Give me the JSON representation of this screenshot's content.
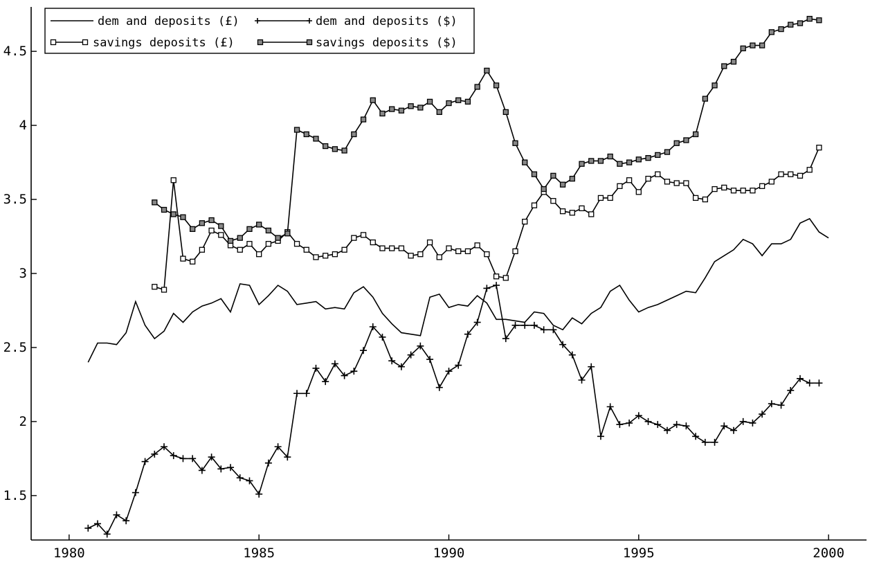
{
  "chart_data": {
    "type": "line",
    "title": "",
    "xlabel": "",
    "ylabel": "",
    "xlim": [
      1979,
      2001
    ],
    "ylim": [
      1.2,
      4.8
    ],
    "grid": false,
    "legend_position": "top-left",
    "x_ticks": [
      1980,
      1985,
      1990,
      1995,
      2000
    ],
    "y_ticks": [
      1.5,
      2,
      2.5,
      3,
      3.5,
      4,
      4.5
    ],
    "x_tick_labels": [
      "1980",
      "1985",
      "1990",
      "1995",
      "2000"
    ],
    "y_tick_labels": [
      "1.5",
      "2",
      "2.5",
      "3",
      "3.5",
      "4",
      "4.5"
    ],
    "series": [
      {
        "name": "dem and deposits (£)",
        "marker": "none",
        "x_start": 1980.5,
        "x_step": 0.25,
        "values": [
          2.4,
          2.53,
          2.53,
          2.52,
          2.6,
          2.81,
          2.65,
          2.56,
          2.61,
          2.73,
          2.67,
          2.74,
          2.78,
          2.8,
          2.83,
          2.74,
          2.93,
          2.92,
          2.79,
          2.85,
          2.92,
          2.88,
          2.79,
          2.8,
          2.81,
          2.76,
          2.77,
          2.76,
          2.87,
          2.91,
          2.84,
          2.73,
          2.66,
          2.6,
          2.59,
          2.58,
          2.84,
          2.86,
          2.77,
          2.79,
          2.78,
          2.85,
          2.8,
          2.69,
          2.69,
          2.68,
          2.67,
          2.74,
          2.73,
          2.65,
          2.62,
          2.7,
          2.66,
          2.73,
          2.77,
          2.88,
          2.92,
          2.82,
          2.74,
          2.77,
          2.79,
          2.82,
          2.85,
          2.88,
          2.87,
          2.97,
          3.08,
          3.12,
          3.16,
          3.23,
          3.2,
          3.12,
          3.2,
          3.2,
          3.23,
          3.34,
          3.37,
          3.28,
          3.24
        ]
      },
      {
        "name": "dem and deposits ($)",
        "marker": "plus",
        "x_start": 1980.5,
        "x_step": 0.25,
        "values": [
          1.28,
          1.31,
          1.24,
          1.37,
          1.33,
          1.52,
          1.73,
          1.78,
          1.83,
          1.77,
          1.75,
          1.75,
          1.67,
          1.76,
          1.68,
          1.69,
          1.62,
          1.6,
          1.51,
          1.72,
          1.83,
          1.76,
          2.19,
          2.19,
          2.36,
          2.27,
          2.39,
          2.31,
          2.34,
          2.48,
          2.64,
          2.57,
          2.41,
          2.37,
          2.45,
          2.51,
          2.42,
          2.23,
          2.34,
          2.38,
          2.59,
          2.67,
          2.9,
          2.92,
          2.56,
          2.65,
          2.65,
          2.65,
          2.62,
          2.62,
          2.52,
          2.45,
          2.28,
          2.37,
          1.9,
          2.1,
          1.98,
          1.99,
          2.04,
          2.0,
          1.98,
          1.94,
          1.98,
          1.97,
          1.9,
          1.86,
          1.86,
          1.97,
          1.94,
          2.0,
          1.99,
          2.05,
          2.12,
          2.11,
          2.21,
          2.29,
          2.26,
          2.26
        ]
      },
      {
        "name": "savings deposits (£)",
        "marker": "open-square",
        "x_start": 1982.25,
        "x_step": 0.25,
        "values": [
          2.91,
          2.89,
          3.63,
          3.1,
          3.08,
          3.16,
          3.29,
          3.26,
          3.19,
          3.16,
          3.2,
          3.13,
          3.2,
          3.22,
          3.28,
          3.2,
          3.16,
          3.11,
          3.12,
          3.13,
          3.16,
          3.24,
          3.26,
          3.21,
          3.17,
          3.17,
          3.17,
          3.12,
          3.13,
          3.21,
          3.11,
          3.17,
          3.15,
          3.15,
          3.19,
          3.13,
          2.98,
          2.97,
          3.15,
          3.35,
          3.46,
          3.55,
          3.49,
          3.42,
          3.41,
          3.44,
          3.4,
          3.51,
          3.51,
          3.59,
          3.63,
          3.55,
          3.64,
          3.67,
          3.62,
          3.61,
          3.61,
          3.51,
          3.5,
          3.57,
          3.58,
          3.56,
          3.56,
          3.56,
          3.59,
          3.62,
          3.67,
          3.67,
          3.66,
          3.7,
          3.85
        ]
      },
      {
        "name": "savings deposits ($)",
        "marker": "filled-square",
        "x_start": 1982.25,
        "x_step": 0.25,
        "values": [
          3.48,
          3.43,
          3.4,
          3.38,
          3.3,
          3.34,
          3.36,
          3.32,
          3.22,
          3.24,
          3.3,
          3.33,
          3.29,
          3.24,
          3.27,
          3.97,
          3.94,
          3.91,
          3.86,
          3.84,
          3.83,
          3.94,
          4.04,
          4.17,
          4.08,
          4.11,
          4.1,
          4.13,
          4.12,
          4.16,
          4.09,
          4.15,
          4.17,
          4.16,
          4.26,
          4.37,
          4.27,
          4.09,
          3.88,
          3.75,
          3.67,
          3.57,
          3.66,
          3.6,
          3.64,
          3.74,
          3.76,
          3.76,
          3.79,
          3.74,
          3.75,
          3.77,
          3.78,
          3.8,
          3.82,
          3.88,
          3.9,
          3.94,
          4.18,
          4.27,
          4.4,
          4.43,
          4.52,
          4.54,
          4.54,
          4.63,
          4.65,
          4.68,
          4.69,
          4.72,
          4.71
        ]
      }
    ]
  }
}
